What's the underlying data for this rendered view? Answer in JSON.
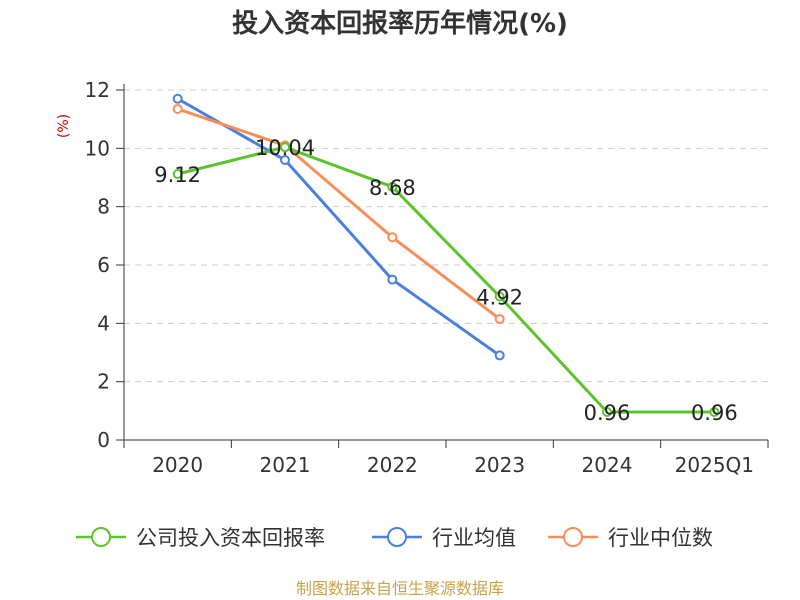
{
  "chart_data": {
    "type": "line",
    "title": "投入资本回报率历年情况(%)",
    "ylabel": "(%)",
    "xlabel": "",
    "categories": [
      "2020",
      "2021",
      "2022",
      "2023",
      "2024",
      "2025Q1"
    ],
    "ylim": [
      0,
      12
    ],
    "yticks": [
      0,
      2,
      4,
      6,
      8,
      10,
      12
    ],
    "grid": true,
    "legend_position": "bottom",
    "series": [
      {
        "name": "公司投入资本回报率",
        "color": "#5cc42b",
        "values": [
          9.12,
          10.04,
          8.68,
          4.92,
          0.96,
          0.96
        ],
        "labels": [
          "9.12",
          "10.04",
          "8.68",
          "4.92",
          "0.96",
          "0.96"
        ]
      },
      {
        "name": "行业均值",
        "color": "#4a7fde",
        "values": [
          11.7,
          9.6,
          5.5,
          2.9,
          null,
          null
        ]
      },
      {
        "name": "行业中位数",
        "color": "#f58f5a",
        "values": [
          11.35,
          10.1,
          6.95,
          4.15,
          null,
          null
        ]
      }
    ]
  },
  "source": "制图数据来自恒生聚源数据库"
}
